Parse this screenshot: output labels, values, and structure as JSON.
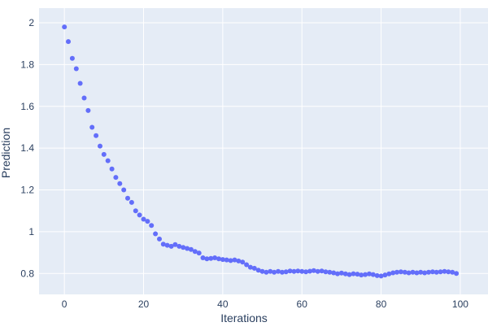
{
  "chart_data": {
    "type": "scatter",
    "title": "",
    "xlabel": "Iterations",
    "ylabel": "Prediction",
    "legend": "none",
    "grid": "on",
    "marker_color": "#636efa",
    "plot_bg_color": "#e5ecf6",
    "paper_bg_color": "#ffffff",
    "grid_color": "#ffffff",
    "text_color": "#2a3f5f",
    "x_range": [
      -6.4,
      107
    ],
    "y_range": [
      0.7,
      2.07
    ],
    "x_ticks": [
      0,
      20,
      40,
      60,
      80,
      100
    ],
    "x_tick_labels": [
      "0",
      "20",
      "40",
      "60",
      "80",
      "100"
    ],
    "y_ticks": [
      0.8,
      1,
      1.2,
      1.4,
      1.6,
      1.8,
      2
    ],
    "y_tick_labels": [
      "0.8",
      "1",
      "1.2",
      "1.4",
      "1.6",
      "1.8",
      "2"
    ],
    "x": [
      0,
      1,
      2,
      3,
      4,
      5,
      6,
      7,
      8,
      9,
      10,
      11,
      12,
      13,
      14,
      15,
      16,
      17,
      18,
      19,
      20,
      21,
      22,
      23,
      24,
      25,
      26,
      27,
      28,
      29,
      30,
      31,
      32,
      33,
      34,
      35,
      36,
      37,
      38,
      39,
      40,
      41,
      42,
      43,
      44,
      45,
      46,
      47,
      48,
      49,
      50,
      51,
      52,
      53,
      54,
      55,
      56,
      57,
      58,
      59,
      60,
      61,
      62,
      63,
      64,
      65,
      66,
      67,
      68,
      69,
      70,
      71,
      72,
      73,
      74,
      75,
      76,
      77,
      78,
      79,
      80,
      81,
      82,
      83,
      84,
      85,
      86,
      87,
      88,
      89,
      90,
      91,
      92,
      93,
      94,
      95,
      96,
      97,
      98,
      99
    ],
    "y": [
      1.98,
      1.91,
      1.83,
      1.78,
      1.71,
      1.64,
      1.58,
      1.5,
      1.46,
      1.41,
      1.37,
      1.34,
      1.3,
      1.26,
      1.23,
      1.2,
      1.16,
      1.14,
      1.1,
      1.08,
      1.06,
      1.05,
      1.03,
      0.99,
      0.965,
      0.94,
      0.935,
      0.93,
      0.938,
      0.93,
      0.925,
      0.92,
      0.915,
      0.905,
      0.898,
      0.875,
      0.87,
      0.872,
      0.875,
      0.87,
      0.867,
      0.865,
      0.862,
      0.865,
      0.86,
      0.855,
      0.842,
      0.83,
      0.825,
      0.816,
      0.81,
      0.806,
      0.81,
      0.806,
      0.81,
      0.806,
      0.808,
      0.812,
      0.81,
      0.812,
      0.81,
      0.808,
      0.811,
      0.814,
      0.81,
      0.812,
      0.808,
      0.806,
      0.803,
      0.799,
      0.802,
      0.798,
      0.795,
      0.799,
      0.797,
      0.793,
      0.795,
      0.798,
      0.795,
      0.79,
      0.788,
      0.793,
      0.798,
      0.803,
      0.806,
      0.808,
      0.806,
      0.803,
      0.806,
      0.803,
      0.806,
      0.803,
      0.806,
      0.808,
      0.806,
      0.808,
      0.81,
      0.808,
      0.806,
      0.8
    ]
  }
}
